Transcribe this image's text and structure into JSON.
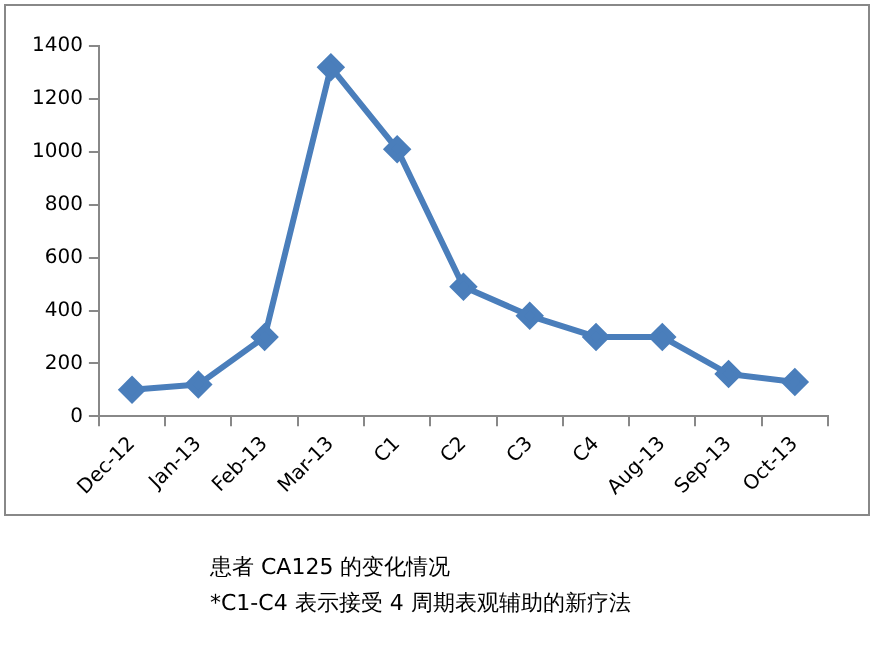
{
  "chart_data": {
    "type": "line",
    "categories": [
      "Dec-12",
      "Jan-13",
      "Feb-13",
      "Mar-13",
      "C1",
      "C2",
      "C3",
      "C4",
      "Aug-13",
      "Sep-13",
      "Oct-13"
    ],
    "series": [
      {
        "color": "#4a7ebb",
        "values": [
          100,
          120,
          300,
          1320,
          1010,
          490,
          380,
          300,
          300,
          160,
          130
        ]
      }
    ],
    "ylim": [
      0,
      1400
    ],
    "yticks": [
      0,
      200,
      400,
      600,
      800,
      1000,
      1200,
      1400
    ],
    "grid": false,
    "legend": false,
    "marker": "diamond",
    "line_style": "solid",
    "annotations": [
      "患者 CA125 的变化情况",
      "*C1-C4 表示接受 4 周期表观辅助的新疗法"
    ]
  }
}
